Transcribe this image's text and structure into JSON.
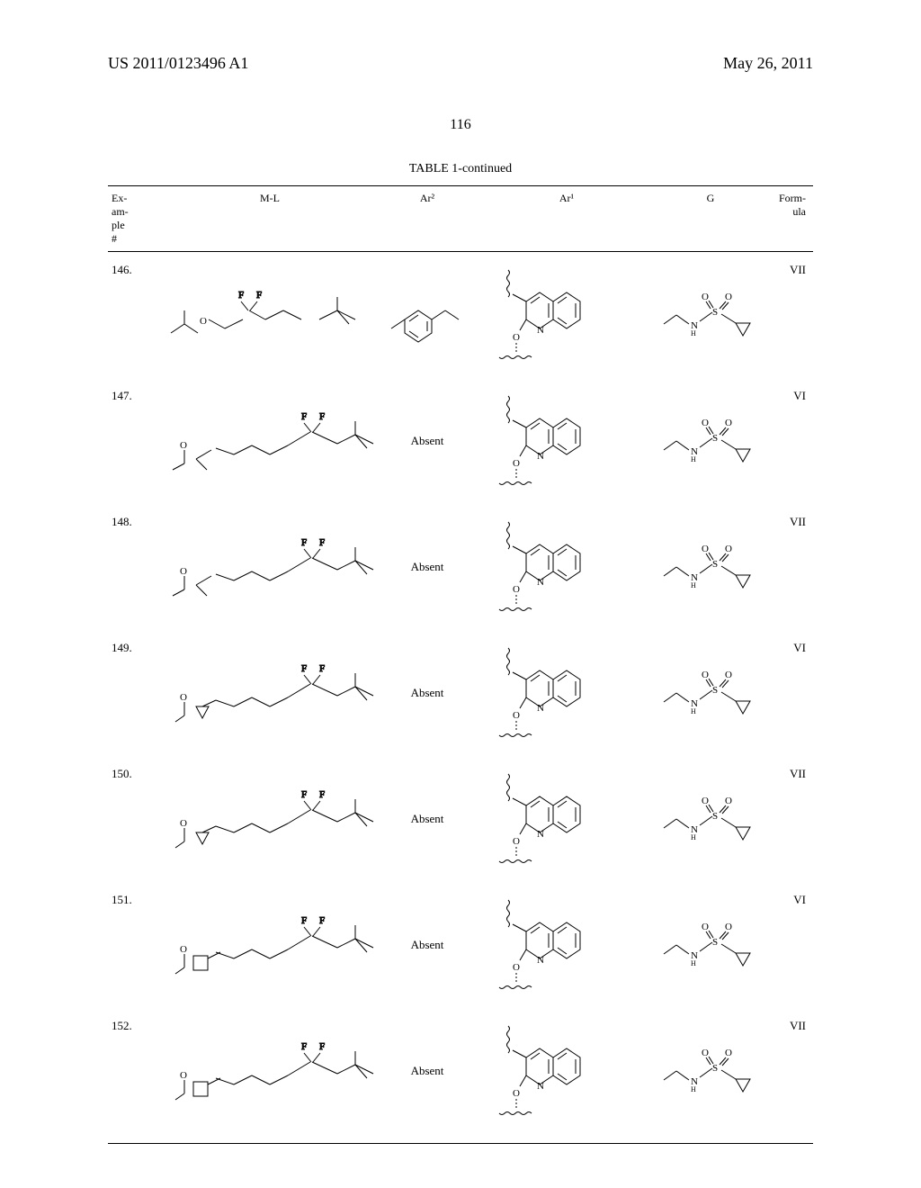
{
  "header": {
    "publication_number": "US 2011/0123496 A1",
    "publication_date": "May 26, 2011"
  },
  "page_number": "116",
  "table": {
    "title": "TABLE 1-continued",
    "columns": {
      "example": "Ex-\nam-\nple\n#",
      "ml": "M-L",
      "ar2": "Ar²",
      "ar1": "Ar¹",
      "g": "G",
      "formula": "Form-\nula"
    },
    "rows": [
      {
        "example": "146.",
        "ar2_text": "",
        "formula": "VII",
        "ml_type": "tbu-ether-short",
        "ar2_type": "benzene",
        "ar1_type": "quinoline",
        "g_type": "sulfonamide"
      },
      {
        "example": "147.",
        "ar2_text": "Absent",
        "formula": "VI",
        "ml_type": "branched-ether",
        "ar2_type": "absent",
        "ar1_type": "quinoline",
        "g_type": "sulfonamide"
      },
      {
        "example": "148.",
        "ar2_text": "Absent",
        "formula": "VII",
        "ml_type": "branched-ether",
        "ar2_type": "absent",
        "ar1_type": "quinoline",
        "g_type": "sulfonamide"
      },
      {
        "example": "149.",
        "ar2_text": "Absent",
        "formula": "VI",
        "ml_type": "cyclopropyl-ether",
        "ar2_type": "absent",
        "ar1_type": "quinoline",
        "g_type": "sulfonamide"
      },
      {
        "example": "150.",
        "ar2_text": "Absent",
        "formula": "VII",
        "ml_type": "cyclopropyl-ether",
        "ar2_type": "absent",
        "ar1_type": "quinoline",
        "g_type": "sulfonamide"
      },
      {
        "example": "151.",
        "ar2_text": "Absent",
        "formula": "VI",
        "ml_type": "cyclobutyl-ether",
        "ar2_type": "absent",
        "ar1_type": "quinoline",
        "g_type": "sulfonamide"
      },
      {
        "example": "152.",
        "ar2_text": "Absent",
        "formula": "VII",
        "ml_type": "cyclobutyl-ether",
        "ar2_type": "absent",
        "ar1_type": "quinoline",
        "g_type": "sulfonamide"
      }
    ]
  },
  "styling": {
    "text_color": "#000000",
    "background_color": "#ffffff",
    "border_color": "#000000",
    "header_fontsize": 18,
    "pagenum_fontsize": 16,
    "table_title_fontsize": 14,
    "table_header_fontsize": 12,
    "table_cell_fontsize": 13,
    "structure_line_color": "#000000",
    "structure_line_width": 1,
    "wavy_line_color": "#000000"
  }
}
